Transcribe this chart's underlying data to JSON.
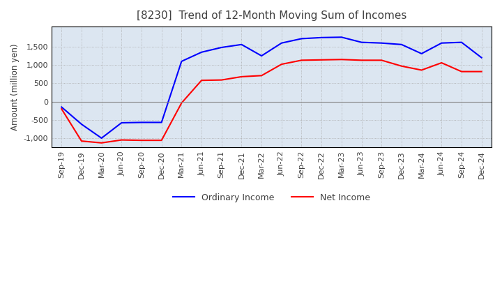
{
  "title": "[8230]  Trend of 12-Month Moving Sum of Incomes",
  "ylabel": "Amount (million yen)",
  "x_labels": [
    "Sep-19",
    "Dec-19",
    "Mar-20",
    "Jun-20",
    "Sep-20",
    "Dec-20",
    "Mar-21",
    "Jun-21",
    "Sep-21",
    "Dec-21",
    "Mar-22",
    "Jun-22",
    "Sep-22",
    "Dec-22",
    "Mar-23",
    "Jun-23",
    "Sep-23",
    "Dec-23",
    "Mar-24",
    "Jun-24",
    "Sep-24",
    "Dec-24"
  ],
  "ordinary_income": [
    -150,
    -620,
    -1000,
    -580,
    -570,
    -570,
    1100,
    1350,
    1480,
    1560,
    1250,
    1600,
    1720,
    1750,
    1760,
    1620,
    1600,
    1560,
    1310,
    1600,
    1620,
    1200
  ],
  "net_income": [
    -200,
    -1080,
    -1130,
    -1050,
    -1060,
    -1060,
    -40,
    580,
    590,
    680,
    710,
    1020,
    1130,
    1140,
    1150,
    1130,
    1130,
    970,
    860,
    1060,
    820,
    820
  ],
  "ordinary_color": "#0000ff",
  "net_color": "#ff0000",
  "ylim": [
    -1250,
    2050
  ],
  "yticks": [
    -1000,
    -500,
    0,
    500,
    1000,
    1500
  ],
  "plot_bg_color": "#dce6f1",
  "fig_bg_color": "#ffffff",
  "grid_color": "#aaaaaa",
  "zero_line_color": "#888888",
  "title_color": "#404040",
  "label_color": "#404040"
}
